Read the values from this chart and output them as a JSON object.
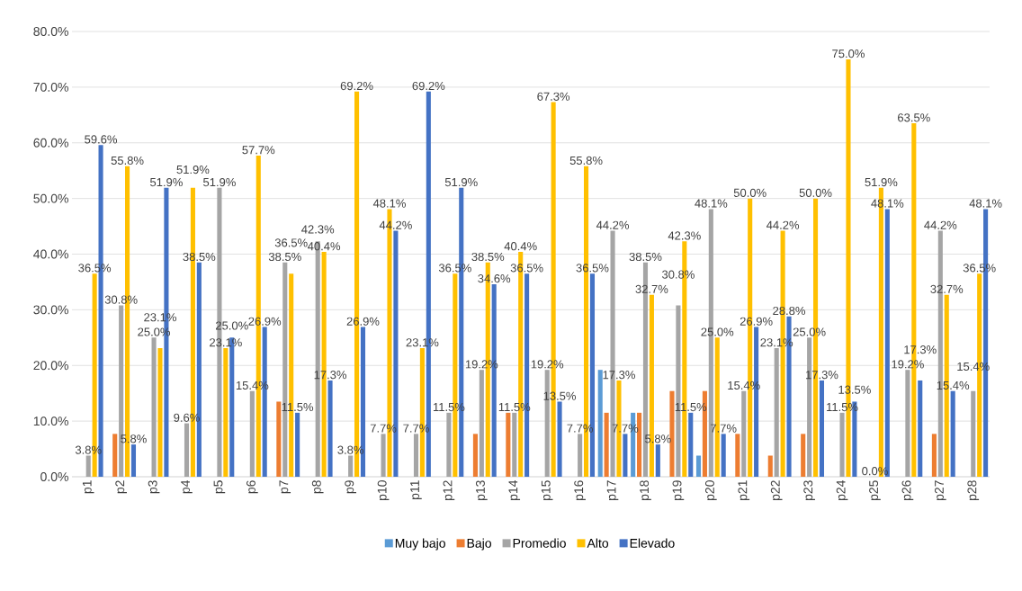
{
  "chart_data": {
    "type": "bar",
    "categories": [
      "p1",
      "p2",
      "p3",
      "p4",
      "p5",
      "p6",
      "p7",
      "p8",
      "p9",
      "p10",
      "p11",
      "p12",
      "p13",
      "p14",
      "p15",
      "p16",
      "p17",
      "p18",
      "p19",
      "p20",
      "p21",
      "p22",
      "p23",
      "p24",
      "p25",
      "p26",
      "p27",
      "p28"
    ],
    "series": [
      {
        "name": "Muy bajo",
        "color": "#5b9bd5",
        "values": [
          0,
          0,
          0,
          0,
          0,
          0,
          0,
          0,
          0,
          0,
          0,
          0,
          0,
          0,
          0,
          0,
          19.2,
          11.5,
          0,
          3.8,
          0,
          0,
          0,
          0,
          0,
          0,
          0,
          0
        ]
      },
      {
        "name": "Bajo",
        "color": "#ed7d31",
        "values": [
          0,
          7.7,
          0,
          0,
          0,
          0,
          13.5,
          0,
          0,
          0,
          0,
          0,
          7.7,
          11.5,
          0,
          0,
          11.5,
          11.5,
          15.4,
          15.4,
          7.7,
          3.8,
          7.7,
          0,
          0,
          0,
          7.7,
          0
        ]
      },
      {
        "name": "Promedio",
        "color": "#a5a5a5",
        "values": [
          3.8,
          30.8,
          25.0,
          9.6,
          51.9,
          15.4,
          38.5,
          42.3,
          3.8,
          7.7,
          7.7,
          11.5,
          19.2,
          11.5,
          19.2,
          7.7,
          44.2,
          38.5,
          30.8,
          48.1,
          15.4,
          23.1,
          25.0,
          11.5,
          0.0,
          19.2,
          44.2,
          15.4
        ],
        "value_labels": [
          "3.8%",
          "30.8%",
          "25.0%",
          "9.6%",
          "51.9%",
          "15.4%",
          "38.5%",
          "42.3%",
          "3.8%",
          "7.7%",
          "7.7%",
          "11.5%",
          "19.2%",
          "11.5%",
          "19.2%",
          "7.7%",
          "44.2%",
          "38.5%",
          "30.8%",
          "48.1%",
          "15.4%",
          "23.1%",
          "25.0%",
          "11.5%",
          "0.0%",
          "19.2%",
          "44.2%",
          "15.4%"
        ]
      },
      {
        "name": "Alto",
        "color": "#ffc000",
        "values": [
          36.5,
          55.8,
          23.1,
          51.9,
          23.1,
          57.7,
          36.5,
          40.4,
          69.2,
          48.1,
          23.1,
          36.5,
          38.5,
          40.4,
          67.3,
          55.8,
          17.3,
          32.7,
          42.3,
          25.0,
          50.0,
          44.2,
          50.0,
          75.0,
          51.9,
          63.5,
          32.7,
          36.5
        ],
        "value_labels": [
          "36.5%",
          "55.8%",
          "23.1%",
          "51.9%",
          "23.1%",
          "57.7%",
          "36.5%",
          "40.4%",
          "69.2%",
          "48.1%",
          "23.1%",
          "36.5%",
          "38.5%",
          "40.4%",
          "67.3%",
          "55.8%",
          "17.3%",
          "32.7%",
          "42.3%",
          "25.0%",
          "50.0%",
          "44.2%",
          "50.0%",
          "75.0%",
          "51.9%",
          "63.5%",
          "32.7%",
          "36.5%"
        ]
      },
      {
        "name": "Elevado",
        "color": "#4472c4",
        "values": [
          59.6,
          5.8,
          51.9,
          38.5,
          25.0,
          26.9,
          11.5,
          17.3,
          26.9,
          44.2,
          69.2,
          51.9,
          34.6,
          36.5,
          13.5,
          36.5,
          7.7,
          5.8,
          11.5,
          7.7,
          26.9,
          28.8,
          17.3,
          13.5,
          48.1,
          17.3,
          15.4,
          48.1
        ],
        "value_labels": [
          "59.6%",
          "5.8%",
          "51.9%",
          "38.5%",
          "25.0%",
          "26.9%",
          "11.5%",
          "17.3%",
          "26.9%",
          "44.2%",
          "69.2%",
          "51.9%",
          "34.6%",
          "36.5%",
          "13.5%",
          "36.5%",
          "7.7%",
          "5.8%",
          "11.5%",
          "7.7%",
          "26.9%",
          "28.8%",
          "17.3%",
          "13.5%",
          "48.1%",
          "17.3%",
          "15.4%",
          "48.1%"
        ]
      }
    ],
    "ylim": [
      0,
      80
    ],
    "yticks": [
      {
        "value": 0,
        "label": "0.0%"
      },
      {
        "value": 10,
        "label": "10.0%"
      },
      {
        "value": 20,
        "label": "20.0%"
      },
      {
        "value": 30,
        "label": "30.0%"
      },
      {
        "value": 40,
        "label": "40.0%"
      },
      {
        "value": 50,
        "label": "50.0%"
      },
      {
        "value": 60,
        "label": "60.0%"
      },
      {
        "value": 70,
        "label": "70.0%"
      },
      {
        "value": 80,
        "label": "80.0%"
      }
    ],
    "grid": "y",
    "legend": "bottom"
  }
}
